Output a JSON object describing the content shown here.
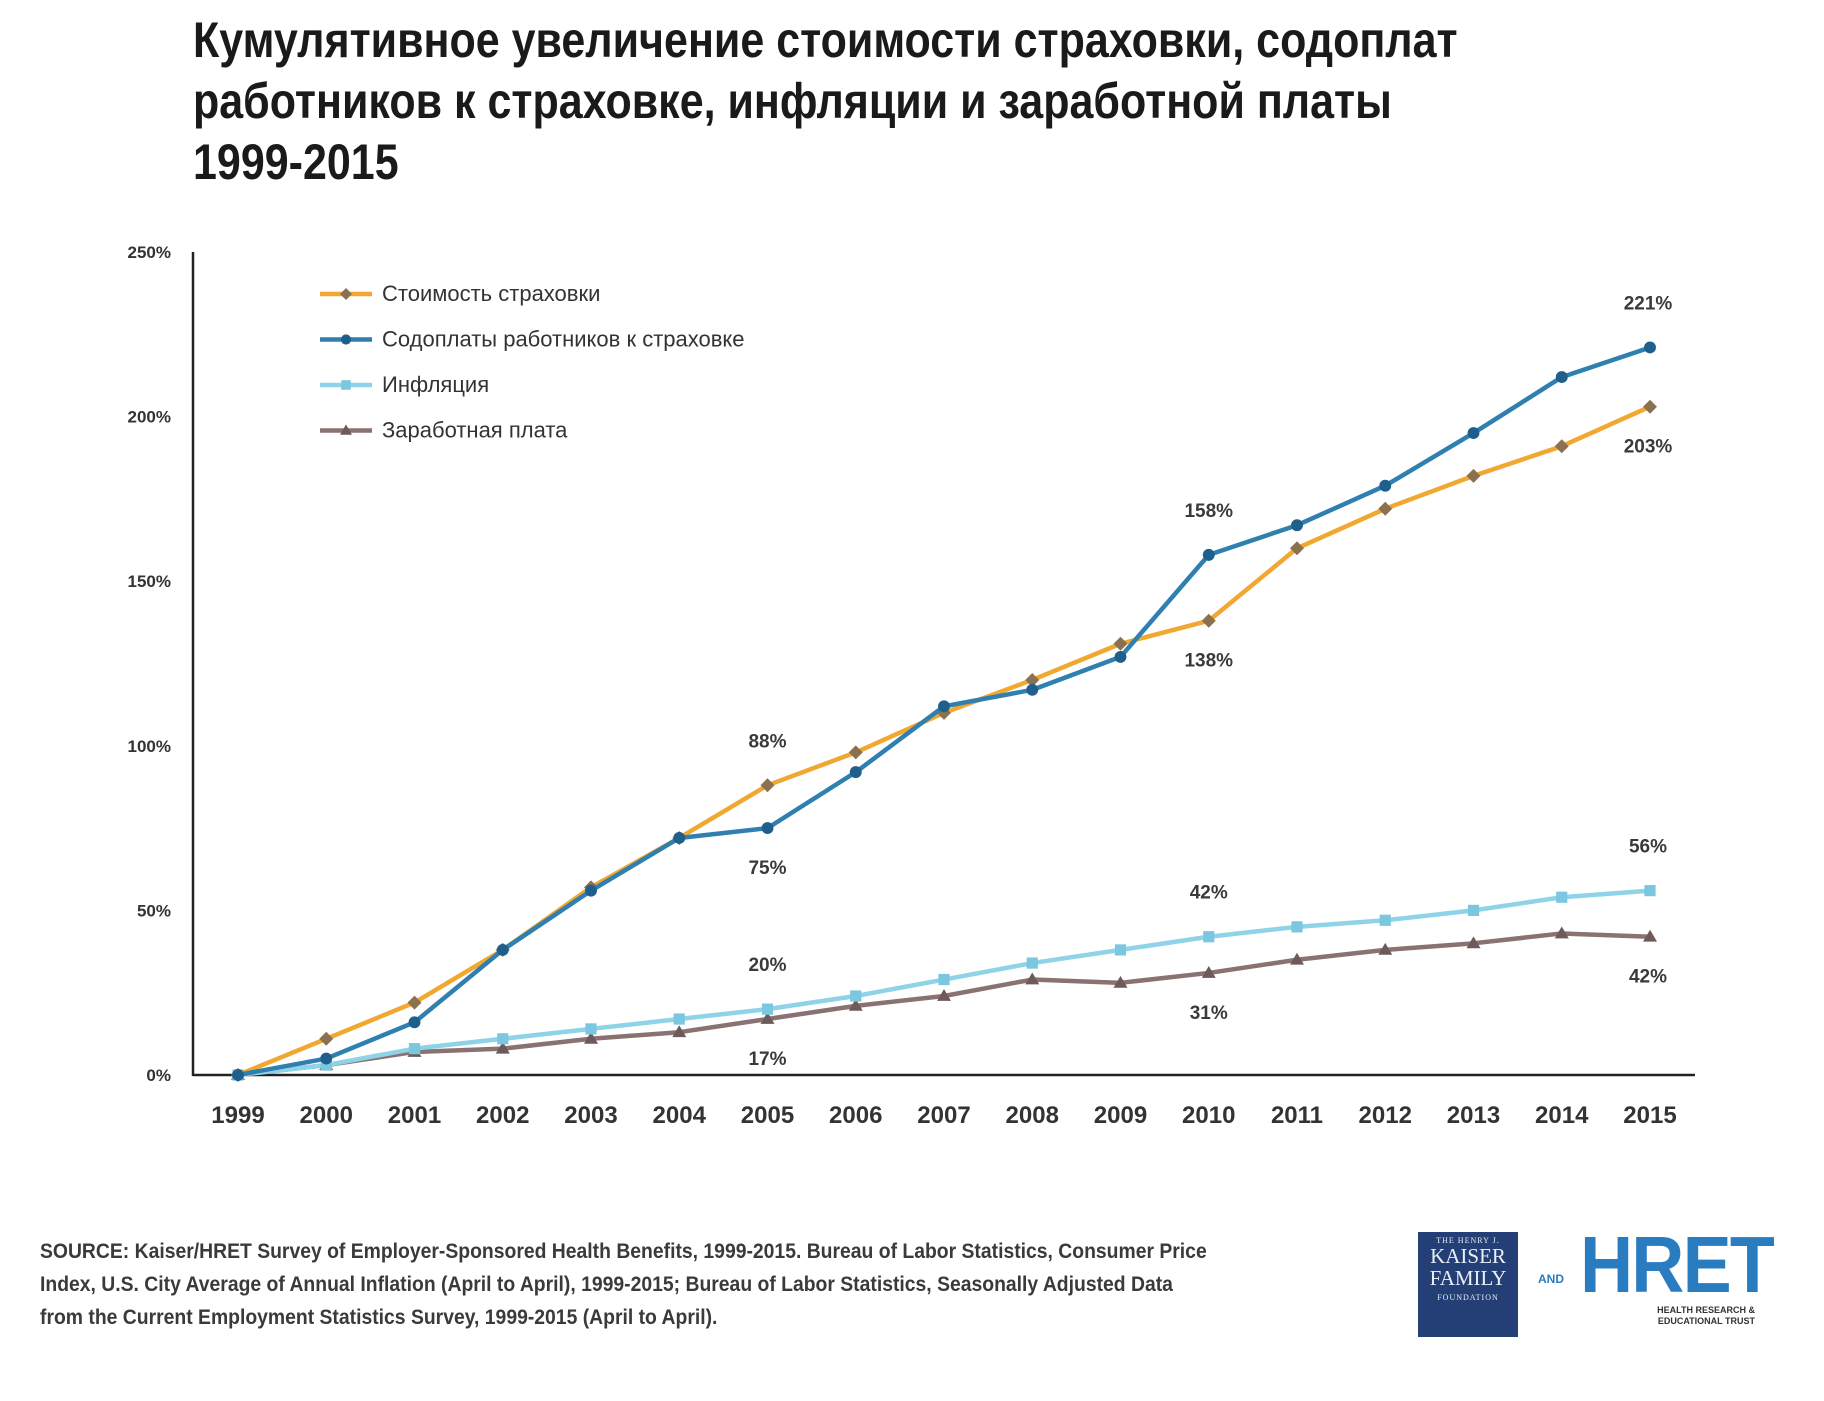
{
  "chart_data": {
    "type": "line",
    "title_lines": [
      "Кумулятивное увеличение стоимости страховки, содоплат",
      "работников к страховке, инфляции и заработной платы",
      "1999-2015"
    ],
    "xlabel": "",
    "ylabel": "",
    "categories": [
      "1999",
      "2000",
      "2001",
      "2002",
      "2003",
      "2004",
      "2005",
      "2006",
      "2007",
      "2008",
      "2009",
      "2010",
      "2011",
      "2012",
      "2013",
      "2014",
      "2015"
    ],
    "ylim": [
      0,
      250
    ],
    "yticks": [
      0,
      50,
      100,
      150,
      200,
      250
    ],
    "ytick_labels": [
      "0%",
      "50%",
      "100%",
      "150%",
      "200%",
      "250%"
    ],
    "grid": false,
    "legend_position": "top-left",
    "series": [
      {
        "name": "Стоимость страховки",
        "color": "#f0a830",
        "marker_color": "#8c7150",
        "marker": "diamond",
        "values": [
          0,
          11,
          22,
          38,
          57,
          72,
          88,
          98,
          110,
          120,
          131,
          138,
          160,
          172,
          182,
          191,
          203
        ]
      },
      {
        "name": "Содоплаты работников к страховке",
        "color": "#2f7fb0",
        "marker_color": "#1f5f8c",
        "marker": "circle",
        "values": [
          0,
          5,
          16,
          38,
          56,
          72,
          75,
          92,
          112,
          117,
          127,
          158,
          167,
          179,
          195,
          212,
          221
        ]
      },
      {
        "name": "Инфляция",
        "color": "#8fd3e8",
        "marker_color": "#7cc7e0",
        "marker": "square",
        "values": [
          0,
          3,
          8,
          11,
          14,
          17,
          20,
          24,
          29,
          34,
          38,
          42,
          45,
          47,
          50,
          54,
          56
        ]
      },
      {
        "name": "Заработная плата",
        "color": "#8a7272",
        "marker_color": "#6e5a5a",
        "marker": "triangle",
        "values": [
          0,
          3,
          7,
          8,
          11,
          13,
          17,
          21,
          24,
          29,
          28,
          31,
          35,
          38,
          40,
          43,
          42
        ]
      }
    ],
    "annotations": [
      {
        "series": 0,
        "index": 6,
        "text": "88%",
        "side": "above"
      },
      {
        "series": 1,
        "index": 6,
        "text": "75%",
        "side": "below"
      },
      {
        "series": 1,
        "index": 11,
        "text": "158%",
        "side": "above"
      },
      {
        "series": 0,
        "index": 11,
        "text": "138%",
        "side": "below"
      },
      {
        "series": 1,
        "index": 16,
        "text": "221%",
        "side": "above"
      },
      {
        "series": 0,
        "index": 16,
        "text": "203%",
        "side": "below"
      },
      {
        "series": 2,
        "index": 6,
        "text": "20%",
        "side": "above"
      },
      {
        "series": 3,
        "index": 6,
        "text": "17%",
        "side": "below"
      },
      {
        "series": 2,
        "index": 11,
        "text": "42%",
        "side": "above"
      },
      {
        "series": 3,
        "index": 11,
        "text": "31%",
        "side": "below"
      },
      {
        "series": 2,
        "index": 16,
        "text": "56%",
        "side": "above"
      },
      {
        "series": 3,
        "index": 16,
        "text": "42%",
        "side": "below"
      }
    ]
  },
  "source_lines": [
    "SOURCE:  Kaiser/HRET Survey of Employer-Sponsored Health Benefits, 1999-2015.  Bureau of Labor Statistics, Consumer Price",
    "Index, U.S. City Average of Annual Inflation (April to April), 1999-2015; Bureau of Labor Statistics, Seasonally Adjusted Data",
    "from the Current Employment Statistics Survey, 1999-2015 (April to April)."
  ],
  "logos": {
    "kff": {
      "small_top": "THE HENRY J.",
      "line1": "KAISER",
      "line2": "FAMILY",
      "small_bottom": "FOUNDATION"
    },
    "and_text": "AND",
    "hret": {
      "word": "HRET",
      "tag_line1": "HEALTH RESEARCH &",
      "tag_line2": "EDUCATIONAL TRUST"
    }
  }
}
